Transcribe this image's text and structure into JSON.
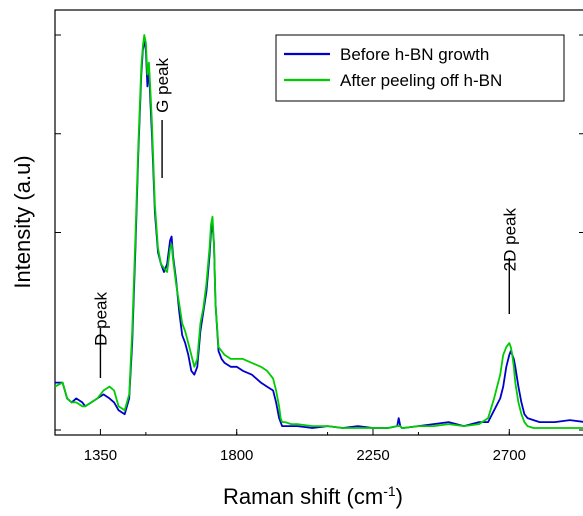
{
  "chart_data": {
    "type": "line",
    "title": "",
    "xlabel": "Raman shift (cm",
    "xlabel_superscript": "-1",
    "xlabel_suffix": ")",
    "ylabel": "Intensity (a.u)",
    "xlim": [
      1200,
      2950
    ],
    "ylim": [
      0,
      1.0
    ],
    "xticks": [
      1350,
      1800,
      2250,
      2700
    ],
    "grid": false,
    "legend_position": "top-right",
    "annotations": [
      {
        "text": "D peak",
        "x": 1350
      },
      {
        "text": "G peak",
        "x": 1580
      },
      {
        "text": "2D peak",
        "x": 2700
      }
    ],
    "series": [
      {
        "name": "Before h-BN growth",
        "color": "#0000cc",
        "x": [
          1200,
          1225,
          1240,
          1255,
          1270,
          1290,
          1300,
          1320,
          1340,
          1360,
          1380,
          1395,
          1410,
          1430,
          1445,
          1455,
          1465,
          1475,
          1485,
          1490,
          1495,
          1500,
          1505,
          1510,
          1515,
          1520,
          1530,
          1540,
          1550,
          1560,
          1570,
          1575,
          1580,
          1585,
          1590,
          1595,
          1600,
          1610,
          1620,
          1630,
          1640,
          1650,
          1660,
          1670,
          1680,
          1690,
          1700,
          1710,
          1715,
          1720,
          1725,
          1730,
          1740,
          1750,
          1760,
          1780,
          1800,
          1820,
          1850,
          1880,
          1900,
          1920,
          1930,
          1940,
          1945,
          1950,
          1960,
          1980,
          2000,
          2050,
          2100,
          2150,
          2200,
          2250,
          2300,
          2330,
          2335,
          2340,
          2345,
          2350,
          2400,
          2450,
          2500,
          2550,
          2600,
          2630,
          2650,
          2670,
          2680,
          2690,
          2700,
          2705,
          2710,
          2715,
          2720,
          2730,
          2740,
          2750,
          2760,
          2780,
          2800,
          2850,
          2900,
          2950
        ],
        "values": [
          0.12,
          0.12,
          0.08,
          0.07,
          0.08,
          0.07,
          0.06,
          0.07,
          0.08,
          0.09,
          0.08,
          0.07,
          0.05,
          0.04,
          0.08,
          0.22,
          0.45,
          0.7,
          0.9,
          0.96,
          0.99,
          0.96,
          0.87,
          0.92,
          0.83,
          0.75,
          0.55,
          0.45,
          0.42,
          0.4,
          0.42,
          0.45,
          0.48,
          0.49,
          0.44,
          0.41,
          0.38,
          0.3,
          0.24,
          0.22,
          0.19,
          0.15,
          0.14,
          0.16,
          0.25,
          0.3,
          0.35,
          0.44,
          0.5,
          0.52,
          0.47,
          0.32,
          0.2,
          0.18,
          0.17,
          0.16,
          0.16,
          0.15,
          0.14,
          0.12,
          0.11,
          0.1,
          0.07,
          0.03,
          0.02,
          0.01,
          0.01,
          0.01,
          0.01,
          0.005,
          0.01,
          0.005,
          0.01,
          0.005,
          0.005,
          0.01,
          0.03,
          0.01,
          0.005,
          0.005,
          0.01,
          0.015,
          0.02,
          0.01,
          0.02,
          0.02,
          0.05,
          0.08,
          0.11,
          0.16,
          0.19,
          0.2,
          0.19,
          0.18,
          0.16,
          0.11,
          0.07,
          0.04,
          0.03,
          0.025,
          0.02,
          0.02,
          0.025,
          0.02
        ]
      },
      {
        "name": "After peeling off h-BN",
        "color": "#00cc00",
        "x": [
          1200,
          1225,
          1240,
          1255,
          1270,
          1290,
          1300,
          1320,
          1340,
          1360,
          1380,
          1395,
          1410,
          1430,
          1445,
          1455,
          1465,
          1475,
          1485,
          1490,
          1495,
          1500,
          1505,
          1510,
          1515,
          1520,
          1530,
          1540,
          1550,
          1560,
          1570,
          1575,
          1580,
          1585,
          1590,
          1595,
          1600,
          1610,
          1620,
          1630,
          1640,
          1650,
          1660,
          1670,
          1680,
          1690,
          1700,
          1710,
          1715,
          1720,
          1725,
          1730,
          1740,
          1750,
          1760,
          1780,
          1800,
          1820,
          1850,
          1880,
          1900,
          1920,
          1930,
          1940,
          1945,
          1950,
          1960,
          1980,
          2000,
          2050,
          2100,
          2150,
          2200,
          2250,
          2300,
          2330,
          2335,
          2340,
          2345,
          2350,
          2400,
          2450,
          2500,
          2550,
          2600,
          2630,
          2650,
          2670,
          2680,
          2690,
          2700,
          2705,
          2710,
          2715,
          2720,
          2730,
          2740,
          2750,
          2760,
          2780,
          2800,
          2850,
          2900,
          2950
        ],
        "values": [
          0.11,
          0.12,
          0.08,
          0.07,
          0.07,
          0.06,
          0.06,
          0.07,
          0.08,
          0.1,
          0.11,
          0.1,
          0.06,
          0.05,
          0.09,
          0.25,
          0.48,
          0.72,
          0.92,
          0.97,
          1.0,
          0.98,
          0.9,
          0.93,
          0.86,
          0.78,
          0.57,
          0.46,
          0.42,
          0.41,
          0.4,
          0.43,
          0.46,
          0.47,
          0.43,
          0.4,
          0.37,
          0.32,
          0.27,
          0.25,
          0.22,
          0.19,
          0.16,
          0.18,
          0.27,
          0.31,
          0.37,
          0.46,
          0.52,
          0.54,
          0.47,
          0.32,
          0.21,
          0.2,
          0.19,
          0.18,
          0.18,
          0.18,
          0.17,
          0.16,
          0.15,
          0.13,
          0.1,
          0.06,
          0.03,
          0.02,
          0.02,
          0.015,
          0.015,
          0.01,
          0.01,
          0.005,
          0.005,
          0.005,
          0.005,
          0.01,
          0.01,
          0.01,
          0.005,
          0.005,
          0.01,
          0.01,
          0.015,
          0.01,
          0.015,
          0.03,
          0.08,
          0.14,
          0.19,
          0.21,
          0.22,
          0.21,
          0.19,
          0.16,
          0.12,
          0.07,
          0.04,
          0.02,
          0.01,
          0.005,
          0.005,
          0.005,
          0.005,
          0.005
        ]
      }
    ]
  }
}
